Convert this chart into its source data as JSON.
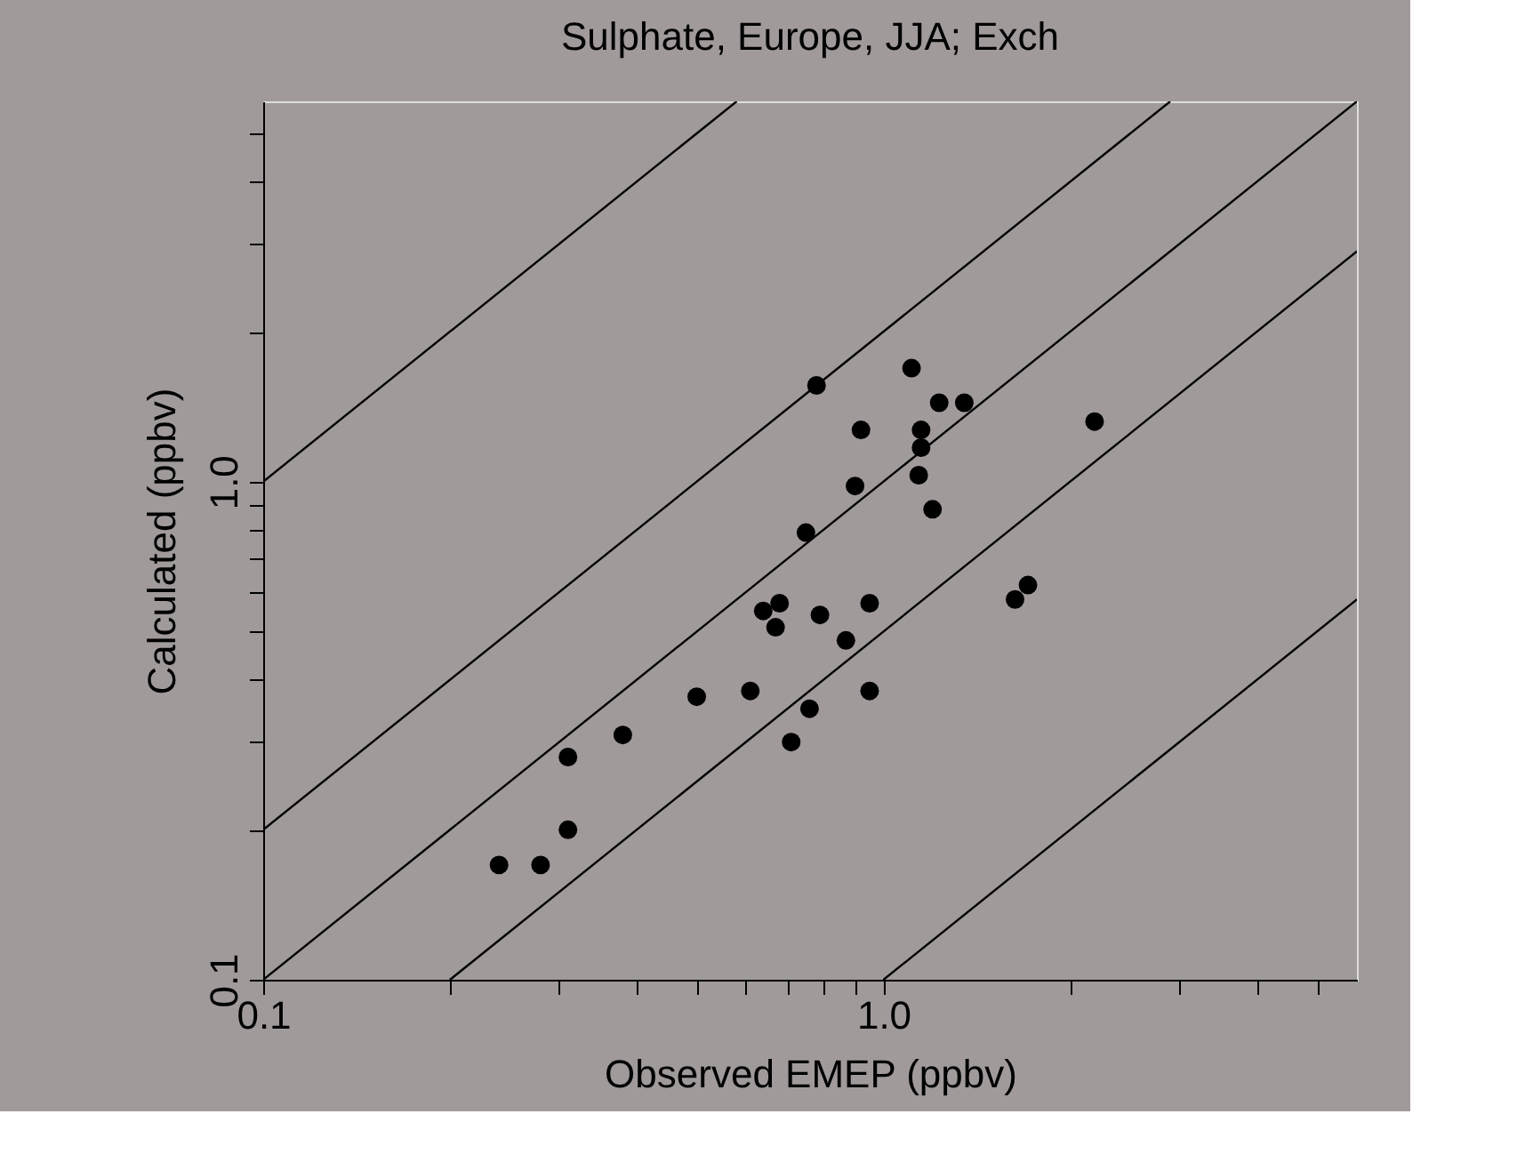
{
  "chart_data": {
    "type": "scatter",
    "title": "Sulphate, Europe, JJA; Exch",
    "xlabel": "Observed EMEP (ppbv)",
    "ylabel": "Calculated  (ppbv)",
    "log": "xy",
    "grid": false,
    "marker": "circle",
    "xlim": [
      0.1,
      5.8
    ],
    "ylim": [
      0.1,
      5.8
    ],
    "xticks": [
      {
        "value": 0.1,
        "label": "0.1"
      },
      {
        "value": 0.2,
        "label": null
      },
      {
        "value": 0.3,
        "label": null
      },
      {
        "value": 0.4,
        "label": null
      },
      {
        "value": 0.5,
        "label": null
      },
      {
        "value": 0.6,
        "label": null
      },
      {
        "value": 0.7,
        "label": null
      },
      {
        "value": 0.8,
        "label": null
      },
      {
        "value": 0.9,
        "label": null
      },
      {
        "value": 1,
        "label": "1.0"
      },
      {
        "value": 2,
        "label": null
      },
      {
        "value": 3,
        "label": null
      },
      {
        "value": 4,
        "label": null
      },
      {
        "value": 5,
        "label": null
      }
    ],
    "yticks": [
      {
        "value": 0.1,
        "label": "0.1"
      },
      {
        "value": 0.2,
        "label": null
      },
      {
        "value": 0.3,
        "label": null
      },
      {
        "value": 0.4,
        "label": null
      },
      {
        "value": 0.5,
        "label": null
      },
      {
        "value": 0.6,
        "label": null
      },
      {
        "value": 0.7,
        "label": null
      },
      {
        "value": 0.8,
        "label": null
      },
      {
        "value": 0.9,
        "label": null
      },
      {
        "value": 1,
        "label": "1.0"
      },
      {
        "value": 2,
        "label": null
      },
      {
        "value": 3,
        "label": null
      },
      {
        "value": 4,
        "label": null
      },
      {
        "value": 5,
        "label": null
      }
    ],
    "series": [
      {
        "type": "line",
        "color": "#000000",
        "line_style": "solid",
        "marker": "none",
        "x": [
          0.1,
          0.58
        ],
        "values": [
          1,
          5.8
        ]
      },
      {
        "type": "line",
        "color": "#000000",
        "line_style": "solid",
        "marker": "none",
        "x": [
          0.1,
          2.9
        ],
        "values": [
          0.2,
          5.8
        ]
      },
      {
        "type": "line",
        "color": "#000000",
        "line_style": "solid",
        "marker": "none",
        "x": [
          0.1,
          5.8
        ],
        "values": [
          0.1,
          5.8
        ]
      },
      {
        "type": "line",
        "color": "#000000",
        "line_style": "solid",
        "marker": "none",
        "x": [
          0.2,
          5.8
        ],
        "values": [
          0.1,
          2.9
        ]
      },
      {
        "type": "line",
        "color": "#000000",
        "line_style": "solid",
        "marker": "none",
        "x": [
          1,
          5.8
        ],
        "values": [
          0.1,
          0.58
        ]
      },
      {
        "color": "#000000",
        "x": [
          0.78,
          1.11,
          1.23,
          1.35,
          0.92,
          1.15,
          1.15,
          2.19,
          0.9,
          1.14,
          1.2,
          0.75,
          0.64,
          0.68,
          0.67,
          0.79,
          0.95,
          0.87,
          1.63,
          1.71,
          0.5,
          0.61,
          0.76,
          0.71,
          0.95,
          0.38,
          0.31,
          0.31,
          0.24,
          0.28
        ],
        "values": [
          1.56,
          1.69,
          1.44,
          1.44,
          1.27,
          1.27,
          1.17,
          1.32,
          0.98,
          1.03,
          0.88,
          0.79,
          0.55,
          0.57,
          0.51,
          0.54,
          0.57,
          0.48,
          0.58,
          0.62,
          0.37,
          0.38,
          0.35,
          0.3,
          0.38,
          0.31,
          0.28,
          0.2,
          0.17,
          0.17
        ]
      }
    ]
  }
}
